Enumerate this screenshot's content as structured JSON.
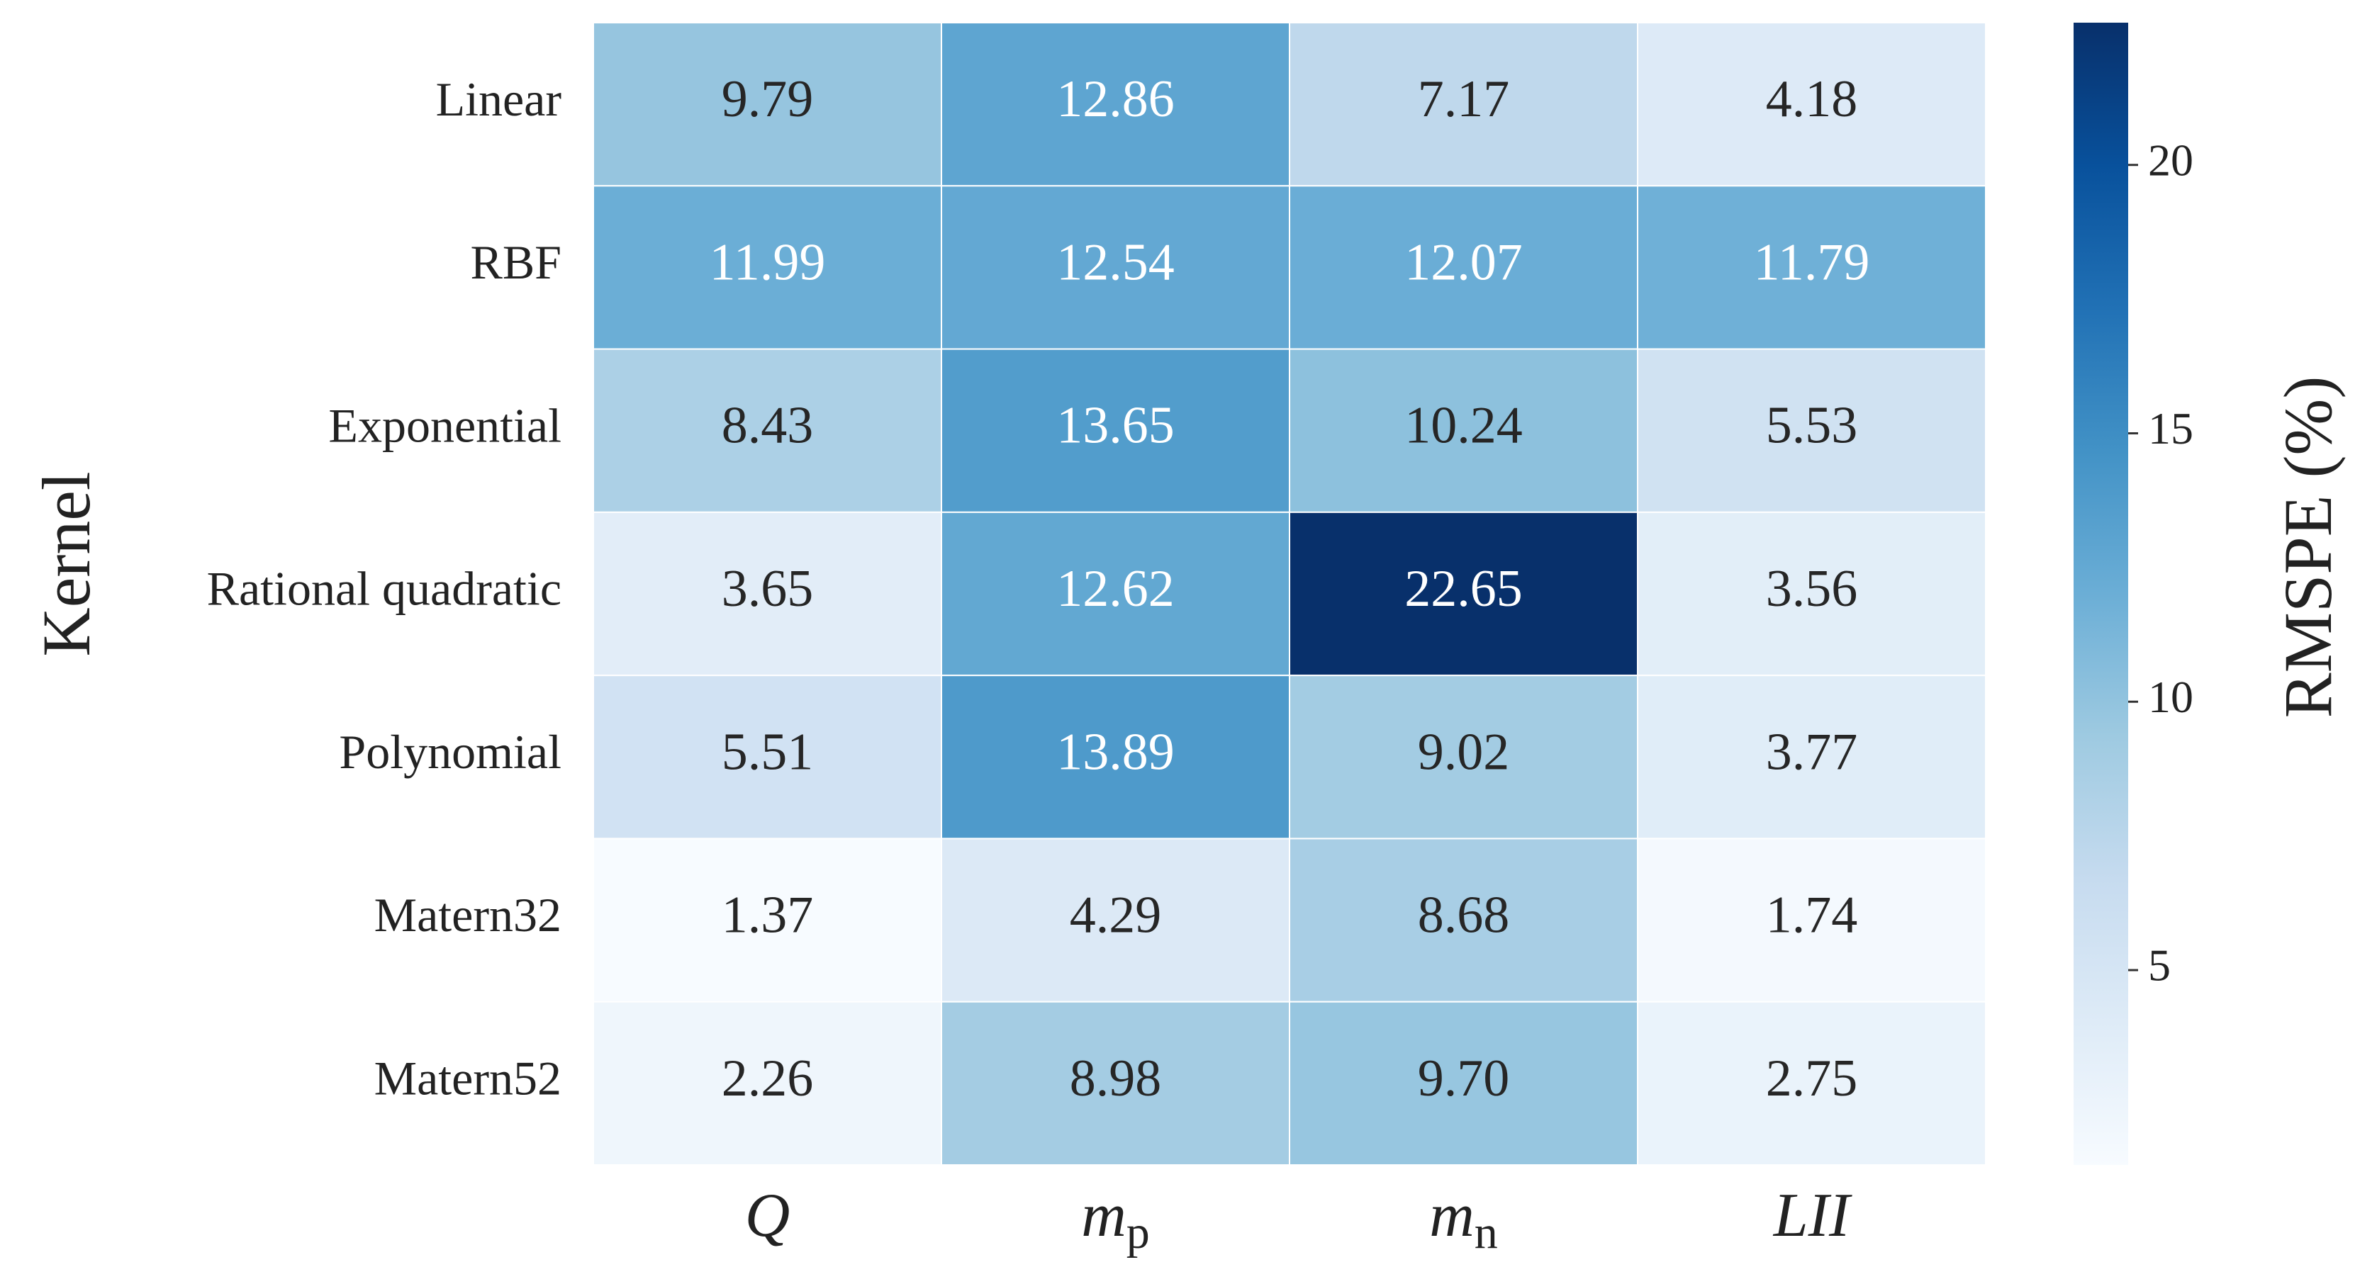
{
  "chart_data": {
    "type": "heatmap",
    "y_label": "Kernel",
    "x_categories": [
      {
        "text": "Q"
      },
      {
        "text": "m",
        "subscript": "p"
      },
      {
        "text": "m",
        "subscript": "n"
      },
      {
        "text": "LII"
      }
    ],
    "y_categories": [
      "Linear",
      "RBF",
      "Exponential",
      "Rational quadratic",
      "Polynomial",
      "Matern32",
      "Matern52"
    ],
    "values": [
      [
        9.79,
        12.86,
        7.17,
        4.18
      ],
      [
        11.99,
        12.54,
        12.07,
        11.79
      ],
      [
        8.43,
        13.65,
        10.24,
        5.53
      ],
      [
        3.65,
        12.62,
        22.65,
        3.56
      ],
      [
        5.51,
        13.89,
        9.02,
        3.77
      ],
      [
        1.37,
        4.29,
        8.68,
        1.74
      ],
      [
        2.26,
        8.98,
        9.7,
        2.75
      ]
    ],
    "value_labels": [
      [
        "9.79",
        "12.86",
        "7.17",
        "4.18"
      ],
      [
        "11.99",
        "12.54",
        "12.07",
        "11.79"
      ],
      [
        "8.43",
        "13.65",
        "10.24",
        "5.53"
      ],
      [
        "3.65",
        "12.62",
        "22.65",
        "3.56"
      ],
      [
        "5.51",
        "13.89",
        "9.02",
        "3.77"
      ],
      [
        "1.37",
        "4.29",
        "8.68",
        "1.74"
      ],
      [
        "2.26",
        "8.98",
        "9.70",
        "2.75"
      ]
    ],
    "colormap": "Blues",
    "colorbar": {
      "label": "RMSPE (%)",
      "lim": [
        1.37,
        22.65
      ],
      "ticks": [
        5,
        10,
        15,
        20
      ]
    }
  }
}
